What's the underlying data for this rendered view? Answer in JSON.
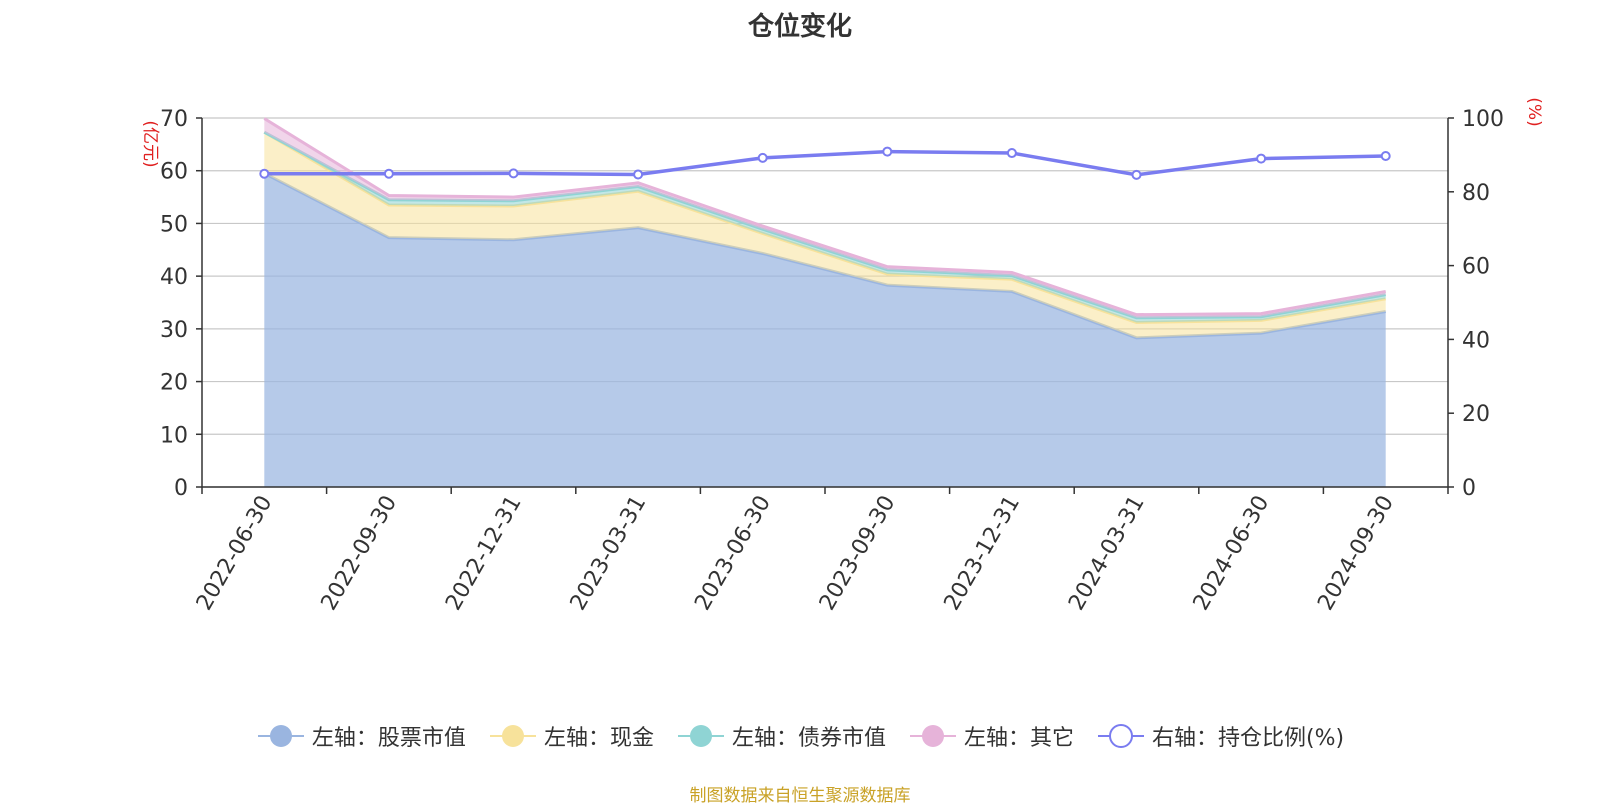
{
  "chart_data": {
    "type": "area",
    "title": "仓位变化",
    "categories": [
      "2022-06-30",
      "2022-09-30",
      "2022-12-31",
      "2023-03-31",
      "2023-06-30",
      "2023-09-30",
      "2023-12-31",
      "2024-03-31",
      "2024-06-30",
      "2024-09-30"
    ],
    "left_axis": {
      "label": "(亿元)",
      "ylim": [
        0,
        70
      ],
      "ticks": [
        0,
        10,
        20,
        30,
        40,
        50,
        60,
        70
      ]
    },
    "right_axis": {
      "label": "(%)",
      "ylim": [
        0,
        100
      ],
      "ticks": [
        0,
        20,
        40,
        60,
        80,
        100
      ]
    },
    "series": [
      {
        "name": "左轴：股票市值",
        "axis": "left",
        "stacked": true,
        "color": "#9ab5e0",
        "values": [
          59.5,
          47.3,
          46.9,
          49.2,
          44.3,
          38.3,
          37.1,
          28.3,
          29.2,
          33.3
        ]
      },
      {
        "name": "左轴：现金",
        "axis": "left",
        "stacked": true,
        "color": "#f7e29b",
        "values": [
          7.8,
          6.2,
          6.4,
          6.9,
          3.8,
          2.1,
          2.3,
          2.9,
          2.4,
          2.4
        ]
      },
      {
        "name": "左轴：债券市值",
        "axis": "left",
        "stacked": true,
        "color": "#8fd4d4",
        "values": [
          0.0,
          1.0,
          1.0,
          0.9,
          0.8,
          0.8,
          0.7,
          0.9,
          0.7,
          0.8
        ]
      },
      {
        "name": "左轴：其它",
        "axis": "left",
        "stacked": true,
        "color": "#e6b3d9",
        "values": [
          2.6,
          0.8,
          0.7,
          0.7,
          0.6,
          0.6,
          0.6,
          0.6,
          0.6,
          0.6
        ]
      },
      {
        "name": "右轴：持仓比例(%)",
        "axis": "right",
        "type": "line",
        "color": "#7a7cf0",
        "values": [
          84.9,
          84.9,
          85.0,
          84.7,
          89.2,
          90.9,
          90.5,
          84.6,
          89.0,
          89.7
        ]
      }
    ]
  },
  "source_note": "制图数据来自恒生聚源数据库"
}
